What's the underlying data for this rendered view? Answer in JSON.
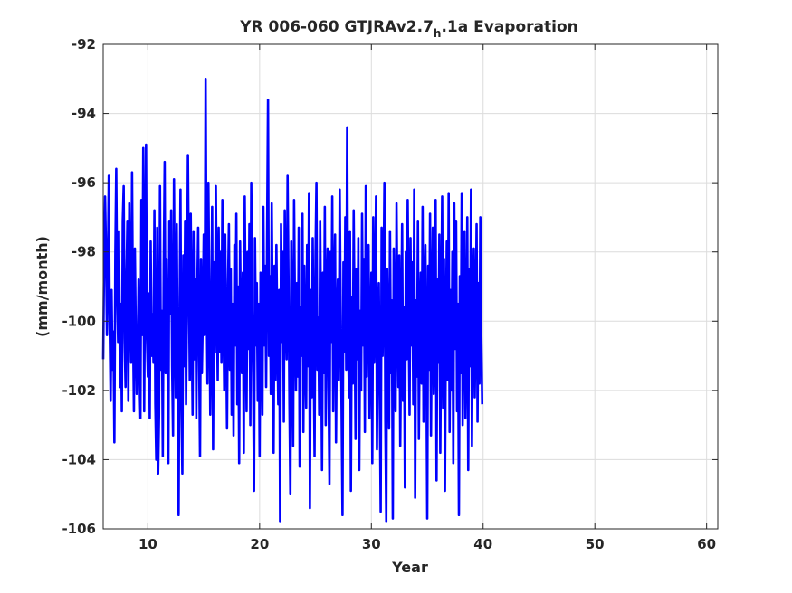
{
  "chart_data": {
    "type": "line",
    "title": {
      "prefix": "YR 006-060 GTJRAv2.7",
      "subscript": "h",
      "suffix": ".1a Evaporation"
    },
    "xlabel": "Year",
    "ylabel": "(mm/month)",
    "xlim": [
      6,
      61
    ],
    "ylim": [
      -106,
      -92
    ],
    "xticks": [
      10,
      20,
      30,
      40,
      50,
      60
    ],
    "yticks": [
      -92,
      -94,
      -96,
      -98,
      -100,
      -102,
      -104,
      -106
    ],
    "grid": true,
    "series": [
      {
        "color": "#0000ff",
        "x_start": 6.0,
        "x_step": 0.0833333,
        "values": [
          -101.1,
          -98.2,
          -96.4,
          -97.9,
          -100.4,
          -98.6,
          -95.8,
          -100.2,
          -102.3,
          -99.1,
          -101.4,
          -100.3,
          -103.5,
          -98.1,
          -95.6,
          -99.2,
          -100.6,
          -97.4,
          -101.9,
          -99.5,
          -102.6,
          -97.1,
          -96.1,
          -100.5,
          -101.9,
          -98.7,
          -97.1,
          -102.3,
          -96.6,
          -99.4,
          -101.2,
          -95.7,
          -100.1,
          -102.6,
          -97.9,
          -100.3,
          -102.1,
          -101.1,
          -98.8,
          -101.6,
          -102.8,
          -96.5,
          -100.4,
          -95.0,
          -102.6,
          -98.3,
          -94.9,
          -100.5,
          -101.6,
          -99.2,
          -102.8,
          -97.7,
          -101.0,
          -99.8,
          -101.2,
          -96.8,
          -102.4,
          -104.0,
          -97.3,
          -104.4,
          -102.7,
          -96.1,
          -101.4,
          -99.7,
          -103.9,
          -98.4,
          -95.4,
          -101.5,
          -98.2,
          -100.8,
          -104.1,
          -97.1,
          -99.8,
          -96.8,
          -101.3,
          -103.3,
          -95.9,
          -99.8,
          -102.2,
          -97.2,
          -101.1,
          -105.6,
          -100.1,
          -96.2,
          -102.4,
          -104.4,
          -98.1,
          -101.3,
          -97.1,
          -102.4,
          -99.5,
          -95.2,
          -98.6,
          -101.7,
          -96.9,
          -100.0,
          -102.7,
          -97.4,
          -101.1,
          -98.8,
          -102.8,
          -99.2,
          -97.3,
          -100.9,
          -103.9,
          -98.2,
          -101.5,
          -99.8,
          -97.5,
          -100.4,
          -93.0,
          -98.9,
          -101.8,
          -96.0,
          -99.2,
          -102.7,
          -100.4,
          -96.7,
          -103.7,
          -98.3,
          -100.9,
          -96.1,
          -99.4,
          -101.7,
          -97.3,
          -100.9,
          -98.0,
          -101.2,
          -96.5,
          -99.6,
          -102.0,
          -97.5,
          -100.3,
          -103.1,
          -99.1,
          -97.2,
          -101.4,
          -98.5,
          -102.7,
          -99.5,
          -103.3,
          -97.8,
          -100.7,
          -96.9,
          -102.4,
          -99.0,
          -104.1,
          -97.7,
          -100.3,
          -101.5,
          -98.6,
          -103.8,
          -96.4,
          -99.9,
          -102.6,
          -98.0,
          -100.8,
          -97.2,
          -103.0,
          -96.0,
          -99.5,
          -101.6,
          -104.9,
          -97.6,
          -100.7,
          -98.9,
          -102.3,
          -99.5,
          -103.9,
          -98.6,
          -100.2,
          -102.7,
          -96.7,
          -100.7,
          -98.4,
          -101.9,
          -97.5,
          -93.6,
          -101.0,
          -98.7,
          -102.1,
          -96.6,
          -100.1,
          -103.8,
          -98.4,
          -101.7,
          -97.8,
          -100.3,
          -102.4,
          -99.1,
          -105.8,
          -97.2,
          -100.6,
          -98.0,
          -102.9,
          -96.8,
          -99.7,
          -101.1,
          -95.8,
          -98.8,
          -102.4,
          -105.0,
          -97.7,
          -100.5,
          -103.6,
          -96.5,
          -99.8,
          -102.0,
          -98.9,
          -101.6,
          -97.3,
          -104.2,
          -99.6,
          -101.0,
          -96.9,
          -103.2,
          -98.4,
          -100.9,
          -102.5,
          -97.8,
          -101.3,
          -96.3,
          -105.4,
          -99.1,
          -102.2,
          -97.6,
          -100.8,
          -103.9,
          -98.1,
          -96.0,
          -101.4,
          -99.9,
          -102.7,
          -97.1,
          -100.3,
          -104.3,
          -98.6,
          -101.5,
          -96.7,
          -103.0,
          -99.4,
          -97.9,
          -101.9,
          -104.7,
          -98.0,
          -100.6,
          -96.4,
          -102.6,
          -99.1,
          -97.5,
          -103.5,
          -100.1,
          -98.8,
          -101.7,
          -96.2,
          -99.6,
          -102.5,
          -105.6,
          -98.3,
          -100.9,
          -97.0,
          -101.4,
          -94.4,
          -100.5,
          -102.2,
          -97.4,
          -104.9,
          -99.3,
          -101.8,
          -96.8,
          -100.0,
          -103.4,
          -98.5,
          -101.1,
          -97.6,
          -104.3,
          -99.7,
          -102.0,
          -96.9,
          -100.7,
          -98.2,
          -103.2,
          -96.1,
          -101.6,
          -99.0,
          -97.8,
          -102.8,
          -100.3,
          -98.6,
          -104.1,
          -97.0,
          -101.2,
          -99.5,
          -96.4,
          -103.7,
          -100.1,
          -98.9,
          -102.2,
          -105.5,
          -97.3,
          -101.0,
          -99.2,
          -96.0,
          -102.9,
          -105.8,
          -98.5,
          -100.6,
          -103.1,
          -97.4,
          -101.5,
          -99.4,
          -105.7,
          -97.9,
          -100.2,
          -102.6,
          -96.6,
          -99.8,
          -101.9,
          -98.1,
          -103.6,
          -100.4,
          -97.2,
          -102.3,
          -99.6,
          -104.8,
          -98.0,
          -101.1,
          -96.5,
          -99.9,
          -102.7,
          -97.6,
          -100.7,
          -98.3,
          -102.4,
          -96.2,
          -105.1,
          -99.4,
          -101.6,
          -97.1,
          -103.4,
          -100.0,
          -98.6,
          -101.8,
          -96.7,
          -102.9,
          -99.2,
          -97.8,
          -100.9,
          -105.7,
          -98.4,
          -101.4,
          -96.9,
          -103.3,
          -99.7,
          -97.3,
          -102.1,
          -100.5,
          -96.5,
          -104.6,
          -98.8,
          -101.2,
          -97.5,
          -103.8,
          -99.9,
          -96.4,
          -102.5,
          -98.2,
          -104.9,
          -100.3,
          -97.7,
          -101.7,
          -96.3,
          -103.2,
          -99.1,
          -102.0,
          -98.0,
          -104.1,
          -96.6,
          -100.8,
          -97.1,
          -102.6,
          -99.5,
          -105.6,
          -98.7,
          -101.5,
          -96.3,
          -103.0,
          -99.8,
          -97.4,
          -102.8,
          -100.6,
          -97.0,
          -104.3,
          -98.5,
          -101.3,
          -96.2,
          -103.6,
          -99.3,
          -97.9,
          -102.2,
          -100.0,
          -97.2,
          -102.9,
          -98.9,
          -101.8,
          -97.0,
          -100.4,
          -102.4
        ]
      }
    ]
  }
}
